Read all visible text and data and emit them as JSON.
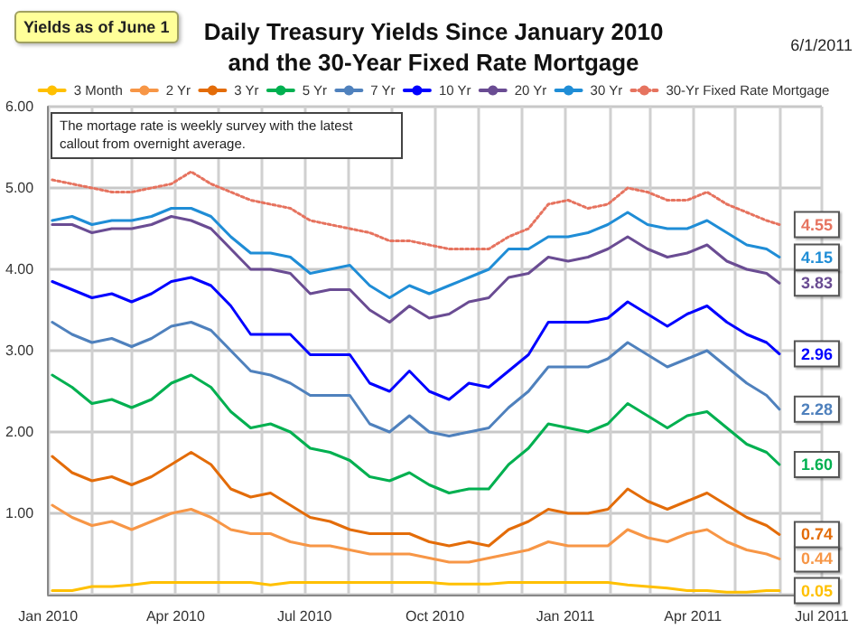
{
  "chart_data": {
    "type": "line",
    "title": "Daily Treasury Yields Since January 2010\nand the 30-Year Fixed Rate Mortgage",
    "annotations": [
      "Yields as of June 1",
      "6/1/2011",
      "The mortage rate is weekly survey with the latest callout from overnight average."
    ],
    "x": [
      "2010-01-04",
      "2010-01-18",
      "2010-02-01",
      "2010-02-15",
      "2010-03-01",
      "2010-03-15",
      "2010-03-29",
      "2010-04-12",
      "2010-04-26",
      "2010-05-10",
      "2010-05-24",
      "2010-06-07",
      "2010-06-21",
      "2010-07-05",
      "2010-07-19",
      "2010-08-02",
      "2010-08-16",
      "2010-08-30",
      "2010-09-13",
      "2010-09-27",
      "2010-10-11",
      "2010-10-25",
      "2010-11-08",
      "2010-11-22",
      "2010-12-06",
      "2010-12-20",
      "2011-01-03",
      "2011-01-17",
      "2011-01-31",
      "2011-02-14",
      "2011-02-28",
      "2011-03-14",
      "2011-03-28",
      "2011-04-11",
      "2011-04-25",
      "2011-05-09",
      "2011-05-23",
      "2011-06-01"
    ],
    "series": [
      {
        "name": "3 Month",
        "color": "#ffc000",
        "values": [
          0.05,
          0.05,
          0.1,
          0.1,
          0.12,
          0.15,
          0.15,
          0.15,
          0.15,
          0.15,
          0.15,
          0.12,
          0.15,
          0.15,
          0.15,
          0.15,
          0.15,
          0.15,
          0.15,
          0.15,
          0.13,
          0.13,
          0.13,
          0.15,
          0.15,
          0.15,
          0.15,
          0.15,
          0.15,
          0.12,
          0.1,
          0.08,
          0.05,
          0.05,
          0.03,
          0.03,
          0.05,
          0.05
        ],
        "value_labels": [
          null,
          null,
          null,
          null,
          null,
          null,
          null,
          null,
          null,
          null,
          null,
          null,
          null,
          null,
          null,
          null,
          null,
          null,
          null,
          null,
          null,
          null,
          null,
          null,
          null,
          null,
          null,
          null,
          null,
          null,
          null,
          null,
          null,
          null,
          null,
          null,
          null,
          "0.05"
        ]
      },
      {
        "name": "2 Yr",
        "color": "#f79646",
        "values": [
          1.1,
          0.95,
          0.85,
          0.9,
          0.8,
          0.9,
          1.0,
          1.05,
          0.95,
          0.8,
          0.75,
          0.75,
          0.65,
          0.6,
          0.6,
          0.55,
          0.5,
          0.5,
          0.5,
          0.45,
          0.4,
          0.4,
          0.45,
          0.5,
          0.55,
          0.65,
          0.6,
          0.6,
          0.6,
          0.8,
          0.7,
          0.65,
          0.75,
          0.8,
          0.65,
          0.55,
          0.5,
          0.44
        ],
        "value_labels": [
          null,
          null,
          null,
          null,
          null,
          null,
          null,
          null,
          null,
          null,
          null,
          null,
          null,
          null,
          null,
          null,
          null,
          null,
          null,
          null,
          null,
          null,
          null,
          null,
          null,
          null,
          null,
          null,
          null,
          null,
          null,
          null,
          null,
          null,
          null,
          null,
          null,
          "0.44"
        ]
      },
      {
        "name": "3 Yr",
        "color": "#e36c09",
        "values": [
          1.7,
          1.5,
          1.4,
          1.45,
          1.35,
          1.45,
          1.6,
          1.75,
          1.6,
          1.3,
          1.2,
          1.25,
          1.1,
          0.95,
          0.9,
          0.8,
          0.75,
          0.75,
          0.75,
          0.65,
          0.6,
          0.65,
          0.6,
          0.8,
          0.9,
          1.05,
          1.0,
          1.0,
          1.05,
          1.3,
          1.15,
          1.05,
          1.15,
          1.25,
          1.1,
          0.95,
          0.85,
          0.74
        ],
        "value_labels": [
          null,
          null,
          null,
          null,
          null,
          null,
          null,
          null,
          null,
          null,
          null,
          null,
          null,
          null,
          null,
          null,
          null,
          null,
          null,
          null,
          null,
          null,
          null,
          null,
          null,
          null,
          null,
          null,
          null,
          null,
          null,
          null,
          null,
          null,
          null,
          null,
          null,
          "0.74"
        ]
      },
      {
        "name": "5 Yr",
        "color": "#00b050",
        "values": [
          2.7,
          2.55,
          2.35,
          2.4,
          2.3,
          2.4,
          2.6,
          2.7,
          2.55,
          2.25,
          2.05,
          2.1,
          2.0,
          1.8,
          1.75,
          1.65,
          1.45,
          1.4,
          1.5,
          1.35,
          1.25,
          1.3,
          1.3,
          1.6,
          1.8,
          2.1,
          2.05,
          2.0,
          2.1,
          2.35,
          2.2,
          2.05,
          2.2,
          2.25,
          2.05,
          1.85,
          1.75,
          1.6
        ],
        "value_labels": [
          null,
          null,
          null,
          null,
          null,
          null,
          null,
          null,
          null,
          null,
          null,
          null,
          null,
          null,
          null,
          null,
          null,
          null,
          null,
          null,
          null,
          null,
          null,
          null,
          null,
          null,
          null,
          null,
          null,
          null,
          null,
          null,
          null,
          null,
          null,
          null,
          null,
          "1.60"
        ]
      },
      {
        "name": "7 Yr",
        "color": "#4f81bd",
        "values": [
          3.35,
          3.2,
          3.1,
          3.15,
          3.05,
          3.15,
          3.3,
          3.35,
          3.25,
          3.0,
          2.75,
          2.7,
          2.6,
          2.45,
          2.45,
          2.45,
          2.1,
          2.0,
          2.2,
          2.0,
          1.95,
          2.0,
          2.05,
          2.3,
          2.5,
          2.8,
          2.8,
          2.8,
          2.9,
          3.1,
          2.95,
          2.8,
          2.9,
          3.0,
          2.8,
          2.6,
          2.45,
          2.28
        ],
        "value_labels": [
          null,
          null,
          null,
          null,
          null,
          null,
          null,
          null,
          null,
          null,
          null,
          null,
          null,
          null,
          null,
          null,
          null,
          null,
          null,
          null,
          null,
          null,
          null,
          null,
          null,
          null,
          null,
          null,
          null,
          null,
          null,
          null,
          null,
          null,
          null,
          null,
          null,
          "2.28"
        ]
      },
      {
        "name": "10 Yr",
        "color": "#0000ff",
        "values": [
          3.85,
          3.75,
          3.65,
          3.7,
          3.6,
          3.7,
          3.85,
          3.9,
          3.8,
          3.55,
          3.2,
          3.2,
          3.2,
          2.95,
          2.95,
          2.95,
          2.6,
          2.5,
          2.75,
          2.5,
          2.4,
          2.6,
          2.55,
          2.75,
          2.95,
          3.35,
          3.35,
          3.35,
          3.4,
          3.6,
          3.45,
          3.3,
          3.45,
          3.55,
          3.35,
          3.2,
          3.1,
          2.96
        ],
        "value_labels": [
          null,
          null,
          null,
          null,
          null,
          null,
          null,
          null,
          null,
          null,
          null,
          null,
          null,
          null,
          null,
          null,
          null,
          null,
          null,
          null,
          null,
          null,
          null,
          null,
          null,
          null,
          null,
          null,
          null,
          null,
          null,
          null,
          null,
          null,
          null,
          null,
          null,
          "2.96"
        ]
      },
      {
        "name": "20 Yr",
        "color": "#6a4c93",
        "values": [
          4.55,
          4.55,
          4.45,
          4.5,
          4.5,
          4.55,
          4.65,
          4.6,
          4.5,
          4.25,
          4.0,
          4.0,
          3.95,
          3.7,
          3.75,
          3.75,
          3.5,
          3.35,
          3.55,
          3.4,
          3.45,
          3.6,
          3.65,
          3.9,
          3.95,
          4.15,
          4.1,
          4.15,
          4.25,
          4.4,
          4.25,
          4.15,
          4.2,
          4.3,
          4.1,
          4.0,
          3.95,
          3.83
        ],
        "value_labels": [
          null,
          null,
          null,
          null,
          null,
          null,
          null,
          null,
          null,
          null,
          null,
          null,
          null,
          null,
          null,
          null,
          null,
          null,
          null,
          null,
          null,
          null,
          null,
          null,
          null,
          null,
          null,
          null,
          null,
          null,
          null,
          null,
          null,
          null,
          null,
          null,
          null,
          "3.83"
        ]
      },
      {
        "name": "30 Yr",
        "color": "#1f8dd6",
        "values": [
          4.6,
          4.65,
          4.55,
          4.6,
          4.6,
          4.65,
          4.75,
          4.75,
          4.65,
          4.4,
          4.2,
          4.2,
          4.15,
          3.95,
          4.0,
          4.05,
          3.8,
          3.65,
          3.8,
          3.7,
          3.8,
          3.9,
          4.0,
          4.25,
          4.25,
          4.4,
          4.4,
          4.45,
          4.55,
          4.7,
          4.55,
          4.5,
          4.5,
          4.6,
          4.45,
          4.3,
          4.25,
          4.15
        ],
        "value_labels": [
          null,
          null,
          null,
          null,
          null,
          null,
          null,
          null,
          null,
          null,
          null,
          null,
          null,
          null,
          null,
          null,
          null,
          null,
          null,
          null,
          null,
          null,
          null,
          null,
          null,
          null,
          null,
          null,
          null,
          null,
          null,
          null,
          null,
          null,
          null,
          null,
          null,
          "4.15"
        ]
      },
      {
        "name": "30-Yr Fixed Rate Mortgage",
        "color": "#e6735f",
        "line_style": "dotted",
        "values": [
          5.1,
          5.05,
          5.0,
          4.95,
          4.95,
          5.0,
          5.05,
          5.2,
          5.05,
          4.95,
          4.85,
          4.8,
          4.75,
          4.6,
          4.55,
          4.5,
          4.45,
          4.35,
          4.35,
          4.3,
          4.25,
          4.25,
          4.25,
          4.4,
          4.5,
          4.8,
          4.85,
          4.75,
          4.8,
          5.0,
          4.95,
          4.85,
          4.85,
          4.95,
          4.8,
          4.7,
          4.6,
          4.55
        ],
        "value_labels": [
          null,
          null,
          null,
          null,
          null,
          null,
          null,
          null,
          null,
          null,
          null,
          null,
          null,
          null,
          null,
          null,
          null,
          null,
          null,
          null,
          null,
          null,
          null,
          null,
          null,
          null,
          null,
          null,
          null,
          null,
          null,
          null,
          null,
          null,
          null,
          null,
          null,
          "4.55"
        ]
      }
    ],
    "xlim": [
      "2010-01-01",
      "2011-07-01"
    ],
    "xticks": [
      {
        "value": "2010-01-01",
        "label": "Jan 2010"
      },
      {
        "value": "2010-02-01",
        "label": null
      },
      {
        "value": "2010-03-01",
        "label": null
      },
      {
        "value": "2010-04-01",
        "label": "Apr 2010"
      },
      {
        "value": "2010-05-01",
        "label": null
      },
      {
        "value": "2010-06-01",
        "label": null
      },
      {
        "value": "2010-07-01",
        "label": "Jul 2010"
      },
      {
        "value": "2010-08-01",
        "label": null
      },
      {
        "value": "2010-09-01",
        "label": null
      },
      {
        "value": "2010-10-01",
        "label": "Oct 2010"
      },
      {
        "value": "2010-11-01",
        "label": null
      },
      {
        "value": "2010-12-01",
        "label": null
      },
      {
        "value": "2011-01-01",
        "label": "Jan 2011"
      },
      {
        "value": "2011-02-01",
        "label": null
      },
      {
        "value": "2011-03-01",
        "label": null
      },
      {
        "value": "2011-04-01",
        "label": "Apr 2011"
      },
      {
        "value": "2011-05-01",
        "label": null
      },
      {
        "value": "2011-06-01",
        "label": null
      },
      {
        "value": "2011-07-01",
        "label": "Jul 2011"
      }
    ],
    "ylim": [
      0,
      6
    ],
    "yticks": [
      {
        "value": 0,
        "label": null
      },
      {
        "value": 1,
        "label": "1.00"
      },
      {
        "value": 2,
        "label": "2.00"
      },
      {
        "value": 3,
        "label": "3.00"
      },
      {
        "value": 4,
        "label": "4.00"
      },
      {
        "value": 5,
        "label": "5.00"
      },
      {
        "value": 6,
        "label": "6.00"
      }
    ],
    "grid": true,
    "legend": "top",
    "marker": "none",
    "line_style": "solid"
  }
}
